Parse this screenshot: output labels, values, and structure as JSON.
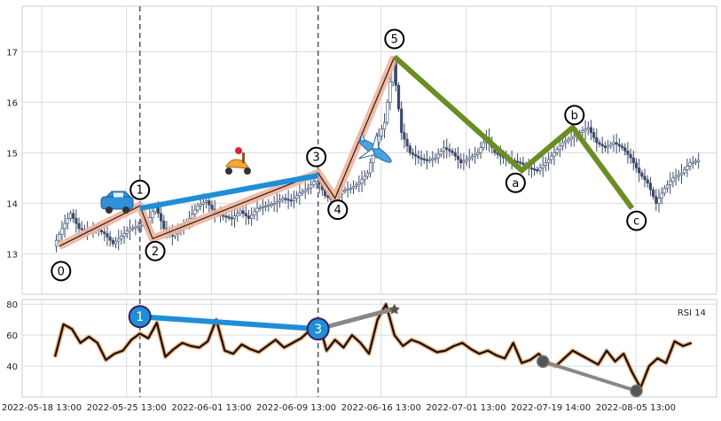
{
  "chart_data": {
    "type": "candlestick",
    "title": "",
    "x_tick_labels": [
      "2022-05-18 13:00",
      "2022-05-25 13:00",
      "2022-06-01 13:00",
      "2022-06-09 13:00",
      "2022-06-16 13:00",
      "2022-07-01 13:00",
      "2022-07-19 14:00",
      "2022-08-05 13:00"
    ],
    "x_tick_index": [
      0,
      10,
      20,
      30,
      40,
      50,
      60,
      70
    ],
    "price_panel": {
      "y_ticks": [
        13,
        14,
        15,
        16,
        17
      ],
      "ylim": [
        12.2,
        17.9
      ],
      "series": [
        {
          "name": "price",
          "points": [
            [
              0,
              13.15
            ],
            [
              1,
              13.5
            ],
            [
              2,
              13.8
            ],
            [
              3,
              13.5
            ],
            [
              4,
              13.45
            ],
            [
              5,
              13.5
            ],
            [
              6,
              13.4
            ],
            [
              7,
              13.2
            ],
            [
              8,
              13.35
            ],
            [
              9,
              13.5
            ],
            [
              10,
              13.55
            ],
            [
              11,
              13.6
            ],
            [
              12,
              13.95
            ],
            [
              13,
              13.5
            ],
            [
              14,
              13.35
            ],
            [
              15,
              13.5
            ],
            [
              16,
              13.7
            ],
            [
              17,
              13.95
            ],
            [
              18,
              14.05
            ],
            [
              19,
              13.8
            ],
            [
              20,
              13.75
            ],
            [
              21,
              13.7
            ],
            [
              22,
              13.85
            ],
            [
              23,
              13.7
            ],
            [
              24,
              13.9
            ],
            [
              25,
              13.95
            ],
            [
              26,
              14.0
            ],
            [
              27,
              14.1
            ],
            [
              28,
              14.05
            ],
            [
              29,
              14.2
            ],
            [
              30,
              14.3
            ],
            [
              31,
              14.5
            ],
            [
              32,
              14.15
            ],
            [
              33,
              14.05
            ],
            [
              34,
              14.25
            ],
            [
              35,
              14.3
            ],
            [
              36,
              14.4
            ],
            [
              37,
              14.6
            ],
            [
              38,
              15.2
            ],
            [
              39,
              15.6
            ],
            [
              40,
              16.8
            ],
            [
              41,
              15.4
            ],
            [
              42,
              15.0
            ],
            [
              43,
              14.9
            ],
            [
              44,
              14.85
            ],
            [
              45,
              14.9
            ],
            [
              46,
              15.1
            ],
            [
              47,
              15.0
            ],
            [
              48,
              14.8
            ],
            [
              49,
              14.9
            ],
            [
              50,
              15.0
            ],
            [
              51,
              15.3
            ],
            [
              52,
              15.0
            ],
            [
              53,
              14.9
            ],
            [
              54,
              14.85
            ],
            [
              55,
              14.8
            ],
            [
              56,
              14.7
            ],
            [
              57,
              14.65
            ],
            [
              58,
              14.8
            ],
            [
              59,
              15.0
            ],
            [
              60,
              15.2
            ],
            [
              61,
              15.3
            ],
            [
              62,
              15.4
            ],
            [
              63,
              15.5
            ],
            [
              64,
              15.2
            ],
            [
              65,
              15.1
            ],
            [
              66,
              15.2
            ],
            [
              67,
              15.1
            ],
            [
              68,
              14.9
            ],
            [
              69,
              14.6
            ],
            [
              70,
              14.4
            ],
            [
              71,
              14.0
            ],
            [
              72,
              14.3
            ],
            [
              73,
              14.5
            ],
            [
              74,
              14.6
            ],
            [
              75,
              14.8
            ],
            [
              76,
              14.85
            ]
          ]
        }
      ],
      "impulse_wave": {
        "labels": [
          "0",
          "1",
          "2",
          "3",
          "4",
          "5"
        ],
        "points": [
          [
            0.5,
            13.15
          ],
          [
            10,
            13.95
          ],
          [
            11.5,
            13.3
          ],
          [
            31,
            14.6
          ],
          [
            33,
            14.1
          ],
          [
            40,
            16.9
          ]
        ]
      },
      "correction_wave": {
        "labels": [
          "a",
          "b",
          "c"
        ],
        "points": [
          [
            40,
            16.9
          ],
          [
            55,
            14.65
          ],
          [
            61,
            15.5
          ],
          [
            68,
            13.9
          ]
        ]
      },
      "divergence_line": {
        "from_label": "1",
        "to_label": "3",
        "points": [
          [
            10,
            13.9
          ],
          [
            31,
            14.55
          ]
        ]
      }
    },
    "rsi_panel": {
      "label": "RSI 14",
      "y_ticks": [
        40,
        60,
        80
      ],
      "ylim": [
        20,
        83
      ],
      "values": [
        46,
        67,
        64,
        55,
        59,
        55,
        44,
        48,
        50,
        57,
        61,
        58,
        68,
        46,
        51,
        55,
        53,
        52,
        56,
        70,
        50,
        48,
        54,
        51,
        49,
        53,
        57,
        52,
        55,
        58,
        63,
        70,
        50,
        57,
        52,
        60,
        55,
        48,
        70,
        80,
        60,
        53,
        57,
        55,
        52,
        49,
        50,
        53,
        55,
        51,
        48,
        50,
        47,
        45,
        55,
        42,
        44,
        48,
        42,
        40,
        45,
        50,
        47,
        44,
        41,
        50,
        43,
        48,
        36,
        26,
        40,
        45,
        42,
        56,
        53,
        55
      ],
      "marked_points": [
        {
          "label": "1",
          "x": 10,
          "y": 72
        },
        {
          "label": "3",
          "x": 31,
          "y": 64
        },
        {
          "label": "",
          "x": 40,
          "y": 77
        },
        {
          "label": "",
          "x": 57.5,
          "y": 43
        },
        {
          "label": "",
          "x": 68.5,
          "y": 24
        }
      ]
    },
    "vertical_markers_x": [
      10,
      31
    ],
    "grid": true
  },
  "colors": {
    "candle": "#3a4a6a",
    "impulse_fill": "#f0b49c",
    "impulse_line": "#2a1a14",
    "correction": "#6b8e23",
    "divergence": "#1e8fd6",
    "gray_line": "#888888",
    "rsi_line": "#111111",
    "rsi_glow": "#f2b07c",
    "vline": "#4a6278",
    "grid": "#dcdcdc"
  }
}
